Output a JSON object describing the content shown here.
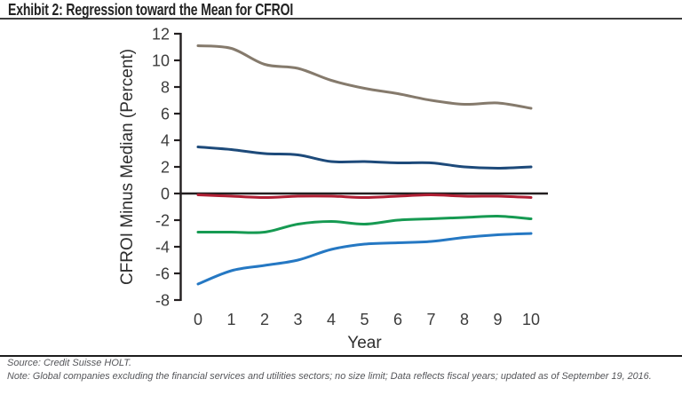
{
  "header": {
    "title": "Exhibit 2: Regression toward the Mean for CFROI"
  },
  "chart_data": {
    "type": "line",
    "title": "Exhibit 2: Regression toward the Mean for CFROI",
    "xlabel": "Year",
    "ylabel": "CFROI Minus Median (Percent)",
    "x": [
      0,
      1,
      2,
      3,
      4,
      5,
      6,
      7,
      8,
      9,
      10
    ],
    "xlim": [
      0,
      10
    ],
    "ylim": [
      -8,
      12
    ],
    "yticks": [
      12,
      10,
      8,
      6,
      4,
      2,
      0,
      -2,
      -4,
      -6,
      -8
    ],
    "grid": false,
    "legend": "none",
    "zero_line": true,
    "axis_color": "#231f20",
    "tick_label_color": "#3c3c3c",
    "series": [
      {
        "name": "brown-line",
        "color": "#857a6c",
        "values": [
          11.1,
          10.9,
          9.7,
          9.4,
          8.5,
          7.9,
          7.5,
          7.0,
          6.7,
          6.8,
          6.4
        ]
      },
      {
        "name": "navy-line",
        "color": "#1d4a7a",
        "values": [
          3.5,
          3.3,
          3.0,
          2.9,
          2.4,
          2.4,
          2.3,
          2.3,
          2.0,
          1.9,
          2.0
        ]
      },
      {
        "name": "red-line",
        "color": "#b11f34",
        "values": [
          -0.1,
          -0.2,
          -0.3,
          -0.2,
          -0.2,
          -0.3,
          -0.2,
          -0.1,
          -0.2,
          -0.2,
          -0.3
        ]
      },
      {
        "name": "green-line",
        "color": "#169a52",
        "values": [
          -2.9,
          -2.9,
          -2.9,
          -2.3,
          -2.1,
          -2.3,
          -2.0,
          -1.9,
          -1.8,
          -1.7,
          -1.9
        ]
      },
      {
        "name": "blue-line",
        "color": "#2578c3",
        "values": [
          -6.8,
          -5.8,
          -5.4,
          -5.0,
          -4.2,
          -3.8,
          -3.7,
          -3.6,
          -3.3,
          -3.1,
          -3.0
        ]
      }
    ]
  },
  "footer": {
    "source": "Source: Credit Suisse HOLT.",
    "note": "Note: Global companies excluding the financial services and utilities sectors; no size limit; Data reflects fiscal years; updated as of September 19, 2016."
  }
}
